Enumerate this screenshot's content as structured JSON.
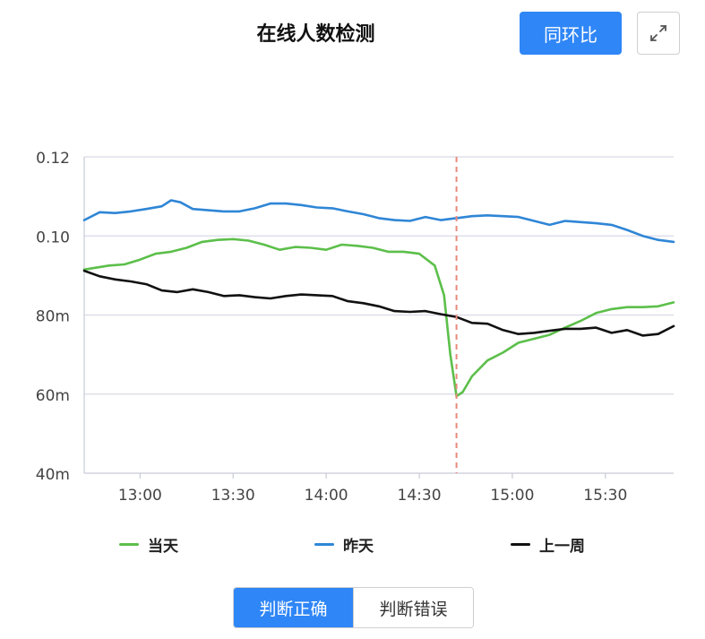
{
  "header": {
    "title": "在线人数检测",
    "compare_button": "同环比"
  },
  "icons": {
    "expand": "expand-arrows-icon"
  },
  "toggle": {
    "correct": "判断正确",
    "wrong": "判断错误",
    "active": "correct"
  },
  "colors": {
    "today": "#5cbf4a",
    "yesterday": "#2f86d6",
    "last_week": "#111111",
    "marker": "#e8897b",
    "grid": "#d9d9e6",
    "accent": "#2f86f6"
  },
  "chart_data": {
    "type": "line",
    "y_axis": {
      "ticks": [
        0.04,
        0.06,
        0.08,
        0.1,
        0.12
      ],
      "tick_labels": [
        "40m",
        "60m",
        "80m",
        "0.10",
        "0.12"
      ],
      "ylim": [
        0.04,
        0.12
      ]
    },
    "x_axis": {
      "ticks": [
        "13:00",
        "13:30",
        "14:00",
        "14:30",
        "15:00",
        "15:30"
      ],
      "xlim": [
        "12:42",
        "15:52"
      ]
    },
    "marker_time": "14:42",
    "grid": true,
    "legend_position": "bottom",
    "series": [
      {
        "name": "当天",
        "color": "#5cbf4a",
        "points": [
          [
            "12:42",
            0.0915
          ],
          [
            "12:50",
            0.0925
          ],
          [
            "12:55",
            0.0928
          ],
          [
            "13:00",
            0.094
          ],
          [
            "13:05",
            0.0955
          ],
          [
            "13:10",
            0.096
          ],
          [
            "13:15",
            0.097
          ],
          [
            "13:20",
            0.0985
          ],
          [
            "13:25",
            0.099
          ],
          [
            "13:30",
            0.0992
          ],
          [
            "13:35",
            0.0988
          ],
          [
            "13:40",
            0.0978
          ],
          [
            "13:45",
            0.0965
          ],
          [
            "13:50",
            0.0972
          ],
          [
            "13:55",
            0.097
          ],
          [
            "14:00",
            0.0965
          ],
          [
            "14:05",
            0.0978
          ],
          [
            "14:10",
            0.0975
          ],
          [
            "14:15",
            0.097
          ],
          [
            "14:20",
            0.096
          ],
          [
            "14:25",
            0.096
          ],
          [
            "14:30",
            0.0955
          ],
          [
            "14:35",
            0.0925
          ],
          [
            "14:38",
            0.085
          ],
          [
            "14:40",
            0.07
          ],
          [
            "14:42",
            0.0595
          ],
          [
            "14:44",
            0.0605
          ],
          [
            "14:47",
            0.0645
          ],
          [
            "14:52",
            0.0685
          ],
          [
            "14:57",
            0.0705
          ],
          [
            "15:02",
            0.073
          ],
          [
            "15:07",
            0.074
          ],
          [
            "15:12",
            0.075
          ],
          [
            "15:17",
            0.0768
          ],
          [
            "15:22",
            0.0785
          ],
          [
            "15:27",
            0.0805
          ],
          [
            "15:32",
            0.0815
          ],
          [
            "15:37",
            0.082
          ],
          [
            "15:42",
            0.082
          ],
          [
            "15:47",
            0.0822
          ],
          [
            "15:52",
            0.0832
          ]
        ]
      },
      {
        "name": "昨天",
        "color": "#2f86d6",
        "points": [
          [
            "12:42",
            0.104
          ],
          [
            "12:47",
            0.106
          ],
          [
            "12:52",
            0.1058
          ],
          [
            "12:57",
            0.1062
          ],
          [
            "13:02",
            0.1068
          ],
          [
            "13:07",
            0.1075
          ],
          [
            "13:10",
            0.109
          ],
          [
            "13:13",
            0.1085
          ],
          [
            "13:17",
            0.1068
          ],
          [
            "13:22",
            0.1065
          ],
          [
            "13:27",
            0.1062
          ],
          [
            "13:32",
            0.1062
          ],
          [
            "13:37",
            0.107
          ],
          [
            "13:42",
            0.1082
          ],
          [
            "13:47",
            0.1082
          ],
          [
            "13:52",
            0.1078
          ],
          [
            "13:57",
            0.1072
          ],
          [
            "14:02",
            0.107
          ],
          [
            "14:07",
            0.1062
          ],
          [
            "14:12",
            0.1055
          ],
          [
            "14:17",
            0.1045
          ],
          [
            "14:22",
            0.104
          ],
          [
            "14:27",
            0.1038
          ],
          [
            "14:32",
            0.1048
          ],
          [
            "14:37",
            0.104
          ],
          [
            "14:42",
            0.1045
          ],
          [
            "14:47",
            0.105
          ],
          [
            "14:52",
            0.1052
          ],
          [
            "14:57",
            0.105
          ],
          [
            "15:02",
            0.1048
          ],
          [
            "15:07",
            0.1038
          ],
          [
            "15:12",
            0.1028
          ],
          [
            "15:17",
            0.1038
          ],
          [
            "15:22",
            0.1035
          ],
          [
            "15:27",
            0.1032
          ],
          [
            "15:32",
            0.1028
          ],
          [
            "15:37",
            0.1015
          ],
          [
            "15:42",
            0.1
          ],
          [
            "15:47",
            0.099
          ],
          [
            "15:52",
            0.0985
          ]
        ]
      },
      {
        "name": "上一周",
        "color": "#111111",
        "points": [
          [
            "12:42",
            0.0912
          ],
          [
            "12:47",
            0.0898
          ],
          [
            "12:52",
            0.089
          ],
          [
            "12:57",
            0.0885
          ],
          [
            "13:02",
            0.0878
          ],
          [
            "13:07",
            0.0862
          ],
          [
            "13:12",
            0.0858
          ],
          [
            "13:17",
            0.0865
          ],
          [
            "13:22",
            0.0858
          ],
          [
            "13:27",
            0.0848
          ],
          [
            "13:32",
            0.085
          ],
          [
            "13:37",
            0.0845
          ],
          [
            "13:42",
            0.0842
          ],
          [
            "13:47",
            0.0848
          ],
          [
            "13:52",
            0.0852
          ],
          [
            "13:57",
            0.085
          ],
          [
            "14:02",
            0.0848
          ],
          [
            "14:07",
            0.0835
          ],
          [
            "14:12",
            0.083
          ],
          [
            "14:17",
            0.0822
          ],
          [
            "14:22",
            0.081
          ],
          [
            "14:27",
            0.0808
          ],
          [
            "14:32",
            0.081
          ],
          [
            "14:37",
            0.0802
          ],
          [
            "14:42",
            0.0795
          ],
          [
            "14:47",
            0.078
          ],
          [
            "14:52",
            0.0778
          ],
          [
            "14:57",
            0.0762
          ],
          [
            "15:02",
            0.0752
          ],
          [
            "15:07",
            0.0755
          ],
          [
            "15:12",
            0.076
          ],
          [
            "15:17",
            0.0765
          ],
          [
            "15:22",
            0.0765
          ],
          [
            "15:27",
            0.0768
          ],
          [
            "15:32",
            0.0755
          ],
          [
            "15:37",
            0.0762
          ],
          [
            "15:42",
            0.0748
          ],
          [
            "15:47",
            0.0752
          ],
          [
            "15:52",
            0.0772
          ]
        ]
      }
    ]
  }
}
